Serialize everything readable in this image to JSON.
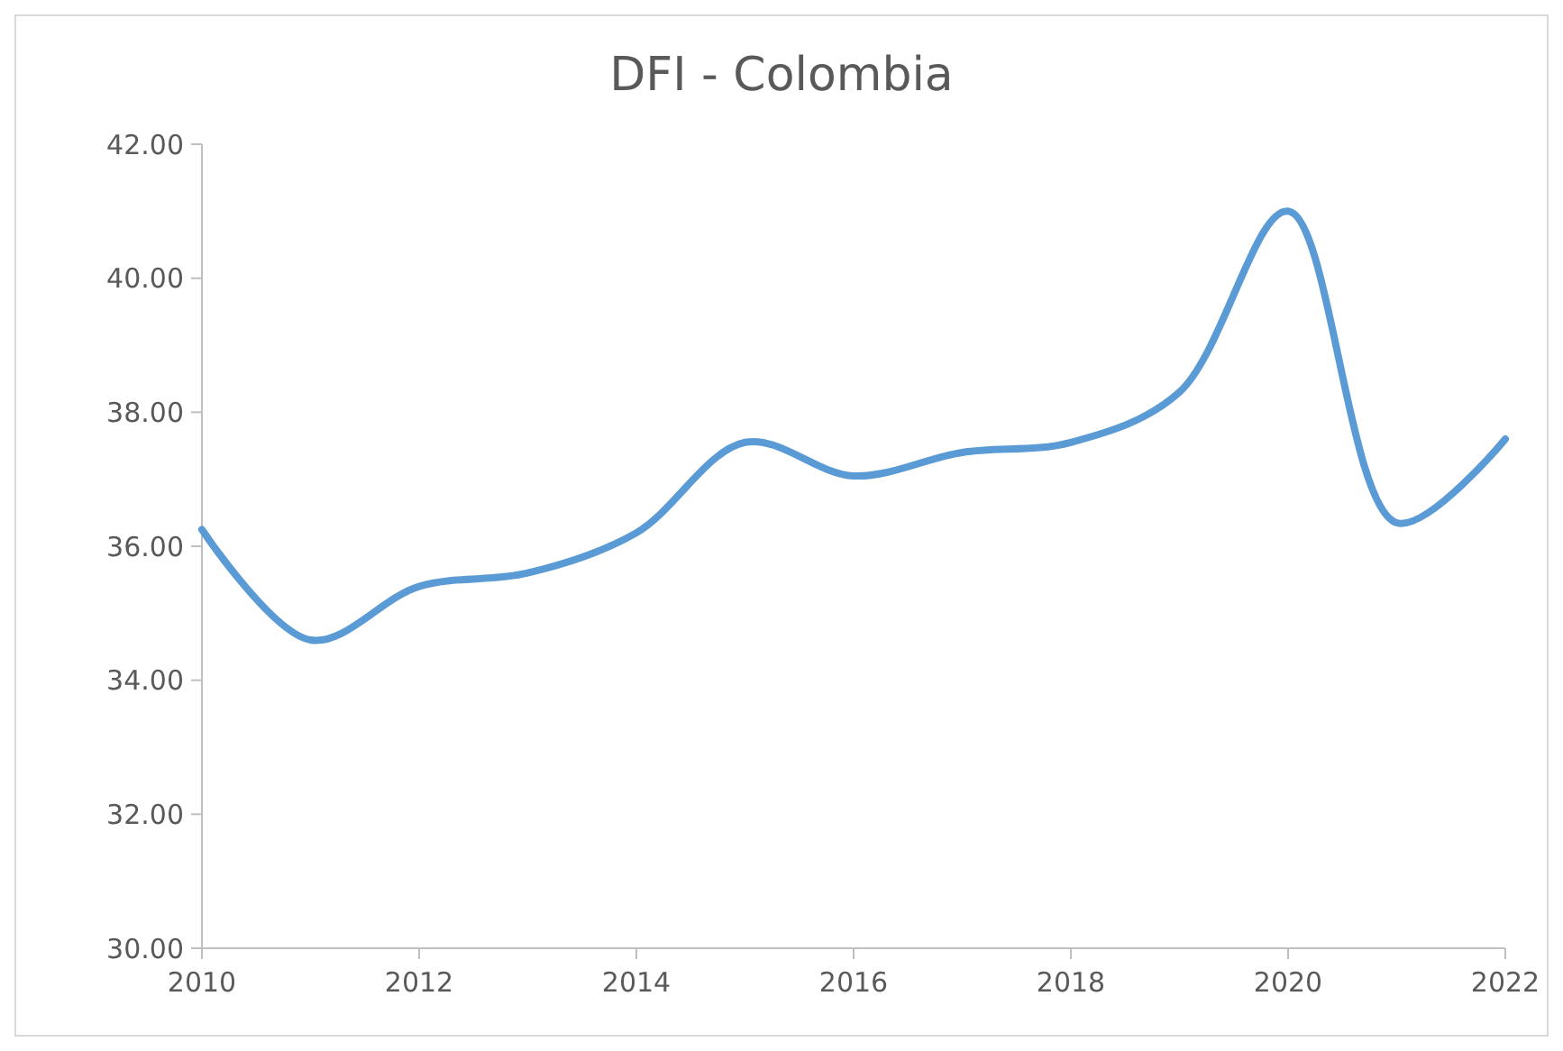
{
  "chart_data": {
    "type": "line",
    "title": "DFI - Colombia",
    "x": [
      2010,
      2011,
      2012,
      2013,
      2014,
      2015,
      2016,
      2017,
      2018,
      2019,
      2020,
      2021,
      2022
    ],
    "series": [
      {
        "color": "#5b9bd5",
        "values": [
          36.25,
          34.6,
          35.4,
          35.6,
          36.2,
          37.55,
          37.05,
          37.4,
          37.55,
          38.3,
          41.0,
          36.35,
          37.6
        ]
      }
    ],
    "xlim": [
      2010,
      2022
    ],
    "xticks": [
      2010,
      2012,
      2014,
      2016,
      2018,
      2020,
      2022
    ],
    "ylim": [
      30,
      42
    ],
    "yticks": [
      {
        "value": 30,
        "label": "30.00"
      },
      {
        "value": 32,
        "label": "32.00"
      },
      {
        "value": 34,
        "label": "34.00"
      },
      {
        "value": 36,
        "label": "36.00"
      },
      {
        "value": 38,
        "label": "38.00"
      },
      {
        "value": 40,
        "label": "40.00"
      },
      {
        "value": 42,
        "label": "42.00"
      }
    ],
    "grid": false,
    "marker": "none",
    "line_style": "solid"
  }
}
